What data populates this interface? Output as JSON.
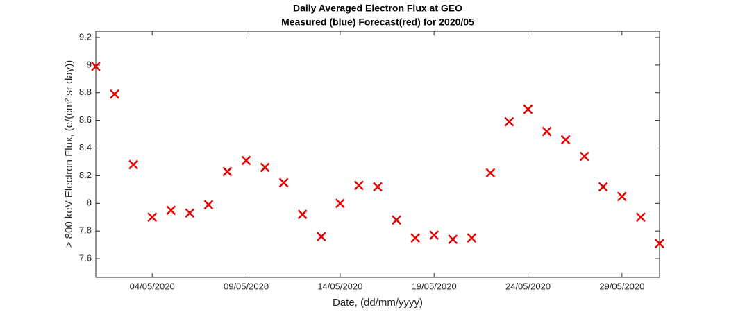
{
  "chart_data": {
    "type": "scatter",
    "title": "Daily Averaged Electron Flux at GEO",
    "subtitle": "Measured (blue) Forecast(red) for 2020/05",
    "xlabel": "Date, (dd/mm/yyyy)",
    "ylabel": "> 800 keV Electron Flux, (e/(cm² sr day))",
    "x": [
      "01/05/2020",
      "02/05/2020",
      "03/05/2020",
      "04/05/2020",
      "05/05/2020",
      "06/05/2020",
      "07/05/2020",
      "08/05/2020",
      "09/05/2020",
      "10/05/2020",
      "11/05/2020",
      "12/05/2020",
      "13/05/2020",
      "14/05/2020",
      "15/05/2020",
      "16/05/2020",
      "17/05/2020",
      "18/05/2020",
      "19/05/2020",
      "20/05/2020",
      "21/05/2020",
      "22/05/2020",
      "23/05/2020",
      "24/05/2020",
      "25/05/2020",
      "26/05/2020",
      "27/05/2020",
      "28/05/2020",
      "29/05/2020",
      "30/05/2020",
      "31/05/2020"
    ],
    "values": [
      8.99,
      8.79,
      8.28,
      7.9,
      7.95,
      7.93,
      7.99,
      8.23,
      8.31,
      8.26,
      8.15,
      7.92,
      7.76,
      8.0,
      8.13,
      8.12,
      7.88,
      7.75,
      7.77,
      7.74,
      7.75,
      8.22,
      8.59,
      8.68,
      8.52,
      8.46,
      8.34,
      8.12,
      8.05,
      7.9,
      7.71
    ],
    "color": "#e60000",
    "marker": "x",
    "xlim": [
      "01/05/2020",
      "31/05/2020"
    ],
    "xticks": [
      "04/05/2020",
      "09/05/2020",
      "14/05/2020",
      "19/05/2020",
      "24/05/2020",
      "29/05/2020"
    ],
    "ylim": [
      7.465,
      9.245
    ],
    "yticks": [
      7.6,
      7.8,
      8,
      8.2,
      8.4,
      8.6,
      8.8,
      9,
      9.2
    ],
    "grid": false
  }
}
